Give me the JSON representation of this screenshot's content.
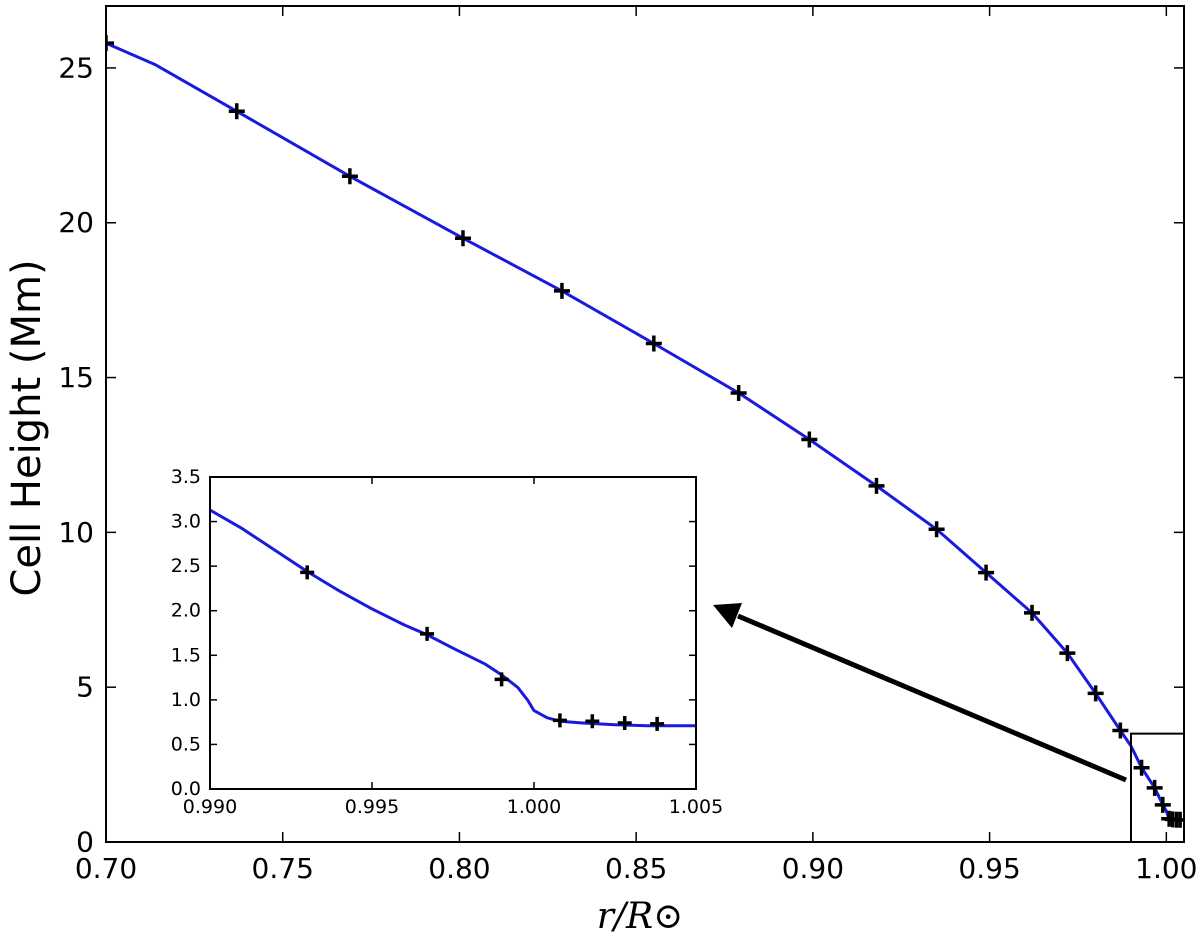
{
  "chart_data": [
    {
      "type": "line",
      "title": "",
      "xlabel": "r/R⊙",
      "ylabel": "Cell Height (Mm)",
      "xlim": [
        0.7,
        1.005
      ],
      "ylim": [
        0,
        27
      ],
      "x_ticks": [
        "0.70",
        "0.75",
        "0.80",
        "0.85",
        "0.90",
        "0.95",
        "1.00"
      ],
      "y_ticks": [
        "0",
        "5",
        "10",
        "15",
        "20",
        "25"
      ],
      "grid": false,
      "colors": {
        "line": "#1a1adf",
        "markers": "#000000",
        "frame": "#000000"
      },
      "series": [
        {
          "style": "line",
          "x": [
            0.7,
            0.714,
            0.737,
            0.769,
            0.801,
            0.829,
            0.855,
            0.879,
            0.899,
            0.918,
            0.935,
            0.949,
            0.962,
            0.972,
            0.98,
            0.987,
            0.99,
            0.993,
            0.9967,
            0.999,
            1.0,
            1.0008,
            1.0018,
            1.0029,
            1.0039,
            1.005
          ],
          "y": [
            25.8,
            25.1,
            23.6,
            21.5,
            19.5,
            17.8,
            16.1,
            14.5,
            13.0,
            11.5,
            10.1,
            8.7,
            7.4,
            6.1,
            4.8,
            3.6,
            3.1,
            2.4,
            1.75,
            1.2,
            1.0,
            0.73,
            0.71,
            0.7,
            0.7,
            0.7
          ]
        },
        {
          "style": "markers",
          "marker": "plus",
          "x": [
            0.7,
            0.737,
            0.769,
            0.801,
            0.829,
            0.855,
            0.879,
            0.899,
            0.918,
            0.935,
            0.949,
            0.962,
            0.972,
            0.98,
            0.987,
            0.993,
            0.9967,
            0.999,
            1.0008,
            1.0018,
            1.0029,
            1.0039
          ],
          "y": [
            25.8,
            23.6,
            21.5,
            19.5,
            17.8,
            16.1,
            14.5,
            13.0,
            11.5,
            10.1,
            8.7,
            7.4,
            6.1,
            4.8,
            3.6,
            2.4,
            1.75,
            1.2,
            0.75,
            0.73,
            0.72,
            0.72
          ]
        }
      ],
      "zoom_box": {
        "xlim": [
          0.99,
          1.005
        ],
        "ylim": [
          0,
          3.5
        ]
      }
    },
    {
      "type": "line",
      "title": "",
      "xlabel": "",
      "ylabel": "",
      "xlim": [
        0.99,
        1.005
      ],
      "ylim": [
        0,
        3.5
      ],
      "x_ticks": [
        "0.990",
        "0.995",
        "1.000",
        "1.005"
      ],
      "y_ticks": [
        "0.0",
        "0.5",
        "1.0",
        "1.5",
        "2.0",
        "2.5",
        "3.0",
        "3.5"
      ],
      "grid": false,
      "series": [
        {
          "style": "line",
          "x": [
            0.99,
            0.991,
            0.992,
            0.993,
            0.994,
            0.995,
            0.996,
            0.9967,
            0.9975,
            0.9985,
            0.999,
            0.9995,
            0.9998,
            1.0,
            1.0004,
            1.0008,
            1.0015,
            1.0025,
            1.0035,
            1.0045,
            1.005
          ],
          "y": [
            3.13,
            2.92,
            2.68,
            2.44,
            2.22,
            2.02,
            1.84,
            1.73,
            1.58,
            1.4,
            1.28,
            1.14,
            1.0,
            0.88,
            0.8,
            0.76,
            0.74,
            0.72,
            0.71,
            0.71,
            0.71
          ]
        },
        {
          "style": "markers",
          "marker": "plus",
          "x": [
            0.993,
            0.9967,
            0.999,
            1.0008,
            1.0018,
            1.0028,
            1.0038
          ],
          "y": [
            2.43,
            1.74,
            1.23,
            0.77,
            0.76,
            0.74,
            0.73
          ]
        }
      ]
    }
  ]
}
